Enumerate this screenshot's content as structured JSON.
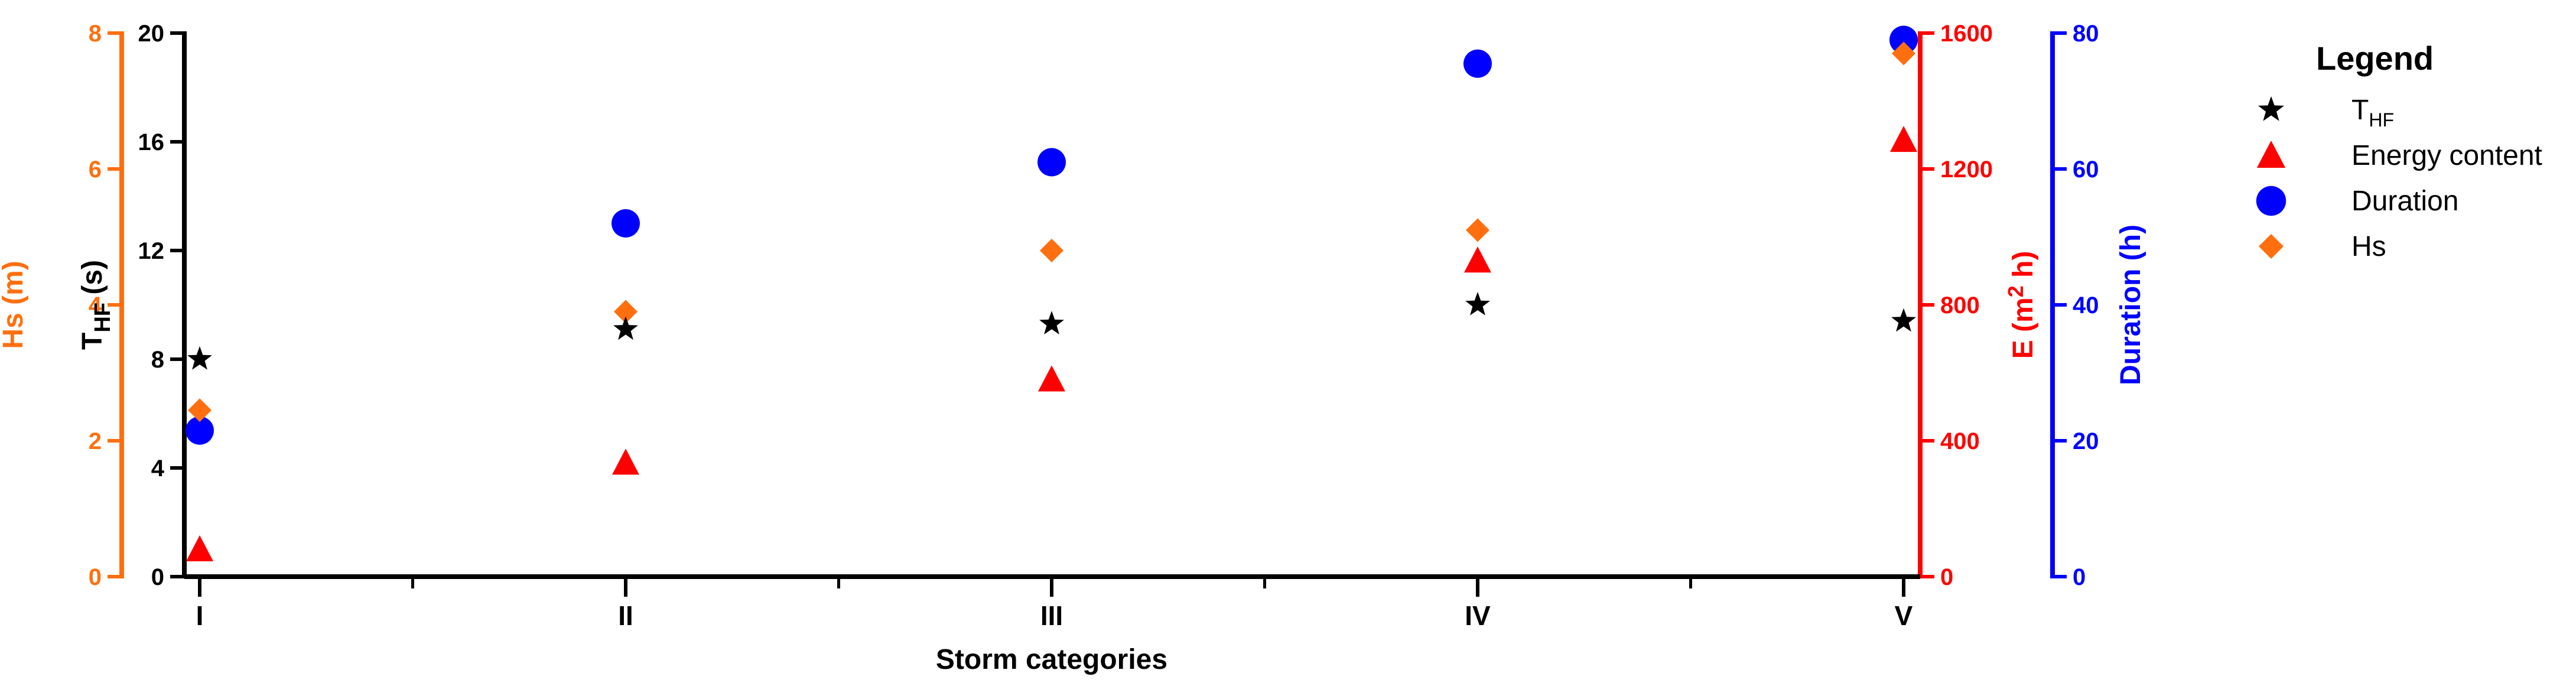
{
  "chart_data": {
    "type": "scatter",
    "title": "",
    "xlabel": "Storm categories",
    "categories": [
      "I",
      "II",
      "III",
      "IV",
      "V"
    ],
    "axes": [
      {
        "id": "hs",
        "title": "Hs (m)",
        "color": "#FF6F0F",
        "ylim": [
          0,
          8
        ],
        "ticks": [
          0,
          2,
          4,
          6,
          8
        ]
      },
      {
        "id": "thf",
        "title_main": "T",
        "title_sub": "HF",
        "title_unit": "(s)",
        "color": "#000000",
        "ylim": [
          0,
          20
        ],
        "ticks": [
          0,
          4,
          8,
          12,
          16,
          20
        ]
      },
      {
        "id": "energy",
        "title_main": "E (m",
        "title_sup": "2",
        "title_unit": " h)",
        "color": "#FF0000",
        "ylim": [
          0,
          1600
        ],
        "ticks": [
          0,
          400,
          800,
          1200,
          1600
        ]
      },
      {
        "id": "duration",
        "title": "Duration (h)",
        "color": "#0000FF",
        "ylim": [
          0,
          80
        ],
        "ticks": [
          0,
          20,
          40,
          60,
          80
        ]
      }
    ],
    "series": [
      {
        "name": "THF",
        "legend_main": "T",
        "legend_sub": "HF",
        "axis": "thf",
        "marker": "star",
        "color": "#000000",
        "values": [
          8.0,
          9.1,
          9.3,
          10.0,
          9.4
        ]
      },
      {
        "name": "Energy content",
        "axis": "energy",
        "marker": "triangle",
        "color": "#FF0000",
        "values": [
          80,
          335,
          580,
          930,
          1285
        ]
      },
      {
        "name": "Duration",
        "axis": "duration",
        "marker": "circle",
        "color": "#0000FF",
        "values": [
          21.5,
          52,
          61,
          75.5,
          79
        ]
      },
      {
        "name": "Hs",
        "axis": "hs",
        "marker": "diamond",
        "color": "#FF6F0F",
        "values": [
          2.45,
          3.9,
          4.8,
          5.1,
          7.7
        ]
      }
    ],
    "legend": {
      "title": "Legend",
      "position": "right"
    },
    "grid": false
  }
}
